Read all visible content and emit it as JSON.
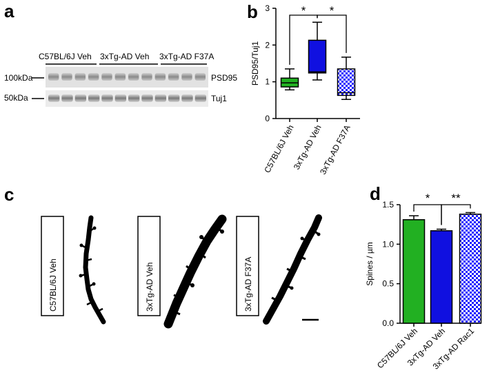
{
  "panel_letters": {
    "a": "a",
    "b": "b",
    "c": "c",
    "d": "d"
  },
  "western_blot": {
    "groups": [
      "C57BL/6J Veh",
      "3xTg-AD Veh",
      "3xTg-AD F37A"
    ],
    "bands": [
      {
        "marker": "100kDa",
        "protein": "PSD95"
      },
      {
        "marker": "50kDa",
        "protein": "Tuj1"
      }
    ]
  },
  "micrographs": {
    "labels": [
      "C57BL/6J Veh",
      "3xTg-AD Veh",
      "3xTg-AD F37A"
    ]
  },
  "colors": {
    "green": "#22b022",
    "blue": "#1010e0",
    "checker": "#1a1aff"
  },
  "chart_data": [
    {
      "id": "b",
      "type": "box",
      "ylabel": "PSD95/Tuj1",
      "ylim": [
        0,
        3
      ],
      "yticks": [
        "0",
        "1",
        "2",
        "3"
      ],
      "categories": [
        "C57BL/6J Veh",
        "3xTg-AD Veh",
        "3xTg-AD F37A"
      ],
      "boxes": [
        {
          "min": 0.78,
          "q1": 0.86,
          "median": 0.97,
          "q3": 1.1,
          "max": 1.35
        },
        {
          "min": 1.05,
          "q1": 1.24,
          "median": 1.27,
          "q3": 2.13,
          "max": 2.62
        },
        {
          "min": 0.52,
          "q1": 0.63,
          "median": 0.7,
          "q3": 1.35,
          "max": 1.67
        }
      ],
      "significance": [
        {
          "from": 0,
          "to": 1,
          "label": "*"
        },
        {
          "from": 1,
          "to": 2,
          "label": "*"
        }
      ]
    },
    {
      "id": "d",
      "type": "bar",
      "ylabel": "Spines / µm",
      "ylim": [
        0,
        1.5
      ],
      "yticks": [
        "0.0",
        "0.5",
        "1.0",
        "1.5"
      ],
      "categories": [
        "C57BL/6J Veh",
        "3xTg-AD Veh",
        "3xTg-AD Rac1"
      ],
      "values": [
        1.31,
        1.17,
        1.38
      ],
      "errors": [
        0.05,
        0.02,
        0.02
      ],
      "significance": [
        {
          "from": 0,
          "to": 1,
          "label": "*"
        },
        {
          "from": 1,
          "to": 2,
          "label": "**"
        }
      ]
    }
  ]
}
